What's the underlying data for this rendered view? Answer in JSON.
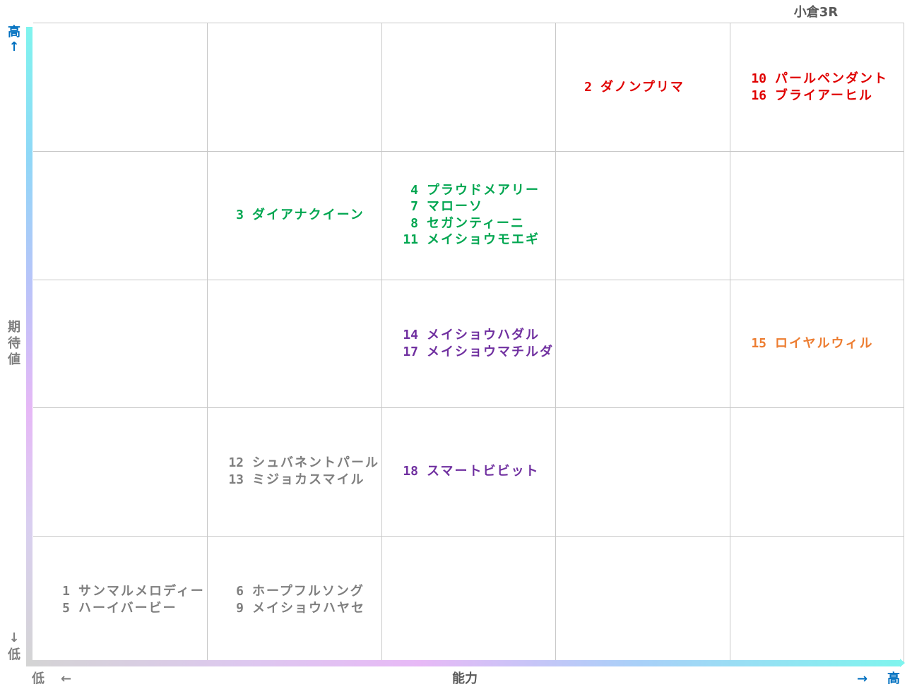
{
  "title": "小倉3R",
  "axes": {
    "y_high": "高",
    "y_high_arrow": "↑",
    "y_label": [
      "期",
      "待",
      "値"
    ],
    "y_low_arrow": "↓",
    "y_low": "低",
    "x_low": "低",
    "x_low_arrow": "←",
    "x_label": "能力",
    "x_high_arrow": "→",
    "x_high": "高",
    "label_color": "#7f7f7f",
    "high_color": "#0070c0"
  },
  "chart_data": {
    "type": "table",
    "title": "小倉3R",
    "xlabel": "能力",
    "ylabel": "期待値",
    "columns": 5,
    "rows": 5,
    "x_direction": "低 → 高 (left to right)",
    "y_direction": "低 → 高 (bottom to top)",
    "cells": [
      {
        "col": 4,
        "row": 1,
        "color": "#e00000",
        "entries": [
          {
            "num": "2",
            "name": "ダノンプリマ"
          }
        ]
      },
      {
        "col": 5,
        "row": 1,
        "color": "#e00000",
        "entries": [
          {
            "num": "10",
            "name": "パールペンダント"
          },
          {
            "num": "16",
            "name": "ブライアーヒル"
          }
        ]
      },
      {
        "col": 2,
        "row": 2,
        "color": "#00a650",
        "entries": [
          {
            "num": "3",
            "name": "ダイアナクイーン"
          }
        ]
      },
      {
        "col": 3,
        "row": 2,
        "color": "#00a650",
        "entries": [
          {
            "num": "4",
            "name": "プラウドメアリー"
          },
          {
            "num": "7",
            "name": "マローソ"
          },
          {
            "num": "8",
            "name": "セガンティーニ"
          },
          {
            "num": "11",
            "name": "メイショウモエギ"
          }
        ]
      },
      {
        "col": 3,
        "row": 3,
        "color": "#7030a0",
        "entries": [
          {
            "num": "14",
            "name": "メイショウハダル"
          },
          {
            "num": "17",
            "name": "メイショウマチルダ"
          }
        ]
      },
      {
        "col": 5,
        "row": 3,
        "color": "#ed7d31",
        "entries": [
          {
            "num": "15",
            "name": "ロイヤルウィル"
          }
        ]
      },
      {
        "col": 2,
        "row": 4,
        "color": "#7f7f7f",
        "entries": [
          {
            "num": "12",
            "name": "シュバネントパール"
          },
          {
            "num": "13",
            "name": "ミジョカスマイル"
          }
        ]
      },
      {
        "col": 3,
        "row": 4,
        "color": "#7030a0",
        "entries": [
          {
            "num": "18",
            "name": "スマートビビット"
          }
        ]
      },
      {
        "col": 1,
        "row": 5,
        "color": "#7f7f7f",
        "entries": [
          {
            "num": "1",
            "name": "サンマルメロディー"
          },
          {
            "num": "5",
            "name": "ハーイバービー"
          }
        ]
      },
      {
        "col": 2,
        "row": 5,
        "color": "#7f7f7f",
        "entries": [
          {
            "num": "6",
            "name": "ホープフルソング"
          },
          {
            "num": "9",
            "name": "メイショウハヤセ"
          }
        ]
      }
    ]
  }
}
